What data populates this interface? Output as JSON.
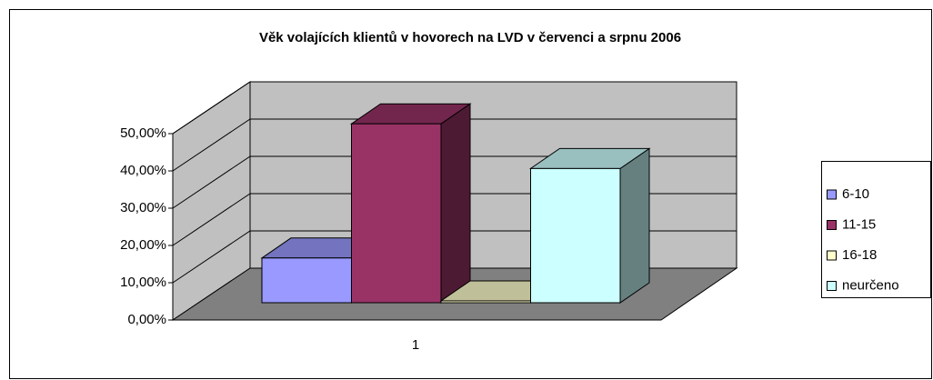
{
  "chart_data": {
    "type": "bar3d",
    "title": "Věk volajících klientů v hovorech na LVD v červenci a srpnu 2006",
    "categories": [
      "1"
    ],
    "series": [
      {
        "name": "6-10",
        "color": "#9999ff",
        "values": [
          12
        ]
      },
      {
        "name": "11-15",
        "color": "#993366",
        "values": [
          48
        ]
      },
      {
        "name": "16-18",
        "color": "#ffffcc",
        "values": [
          0.5
        ]
      },
      {
        "name": "neurčeno",
        "color": "#ccffff",
        "values": [
          36
        ]
      }
    ],
    "ylim": [
      0,
      50
    ],
    "yticks": [
      {
        "value": 0,
        "label": "0,00%"
      },
      {
        "value": 10,
        "label": "10,00%"
      },
      {
        "value": 20,
        "label": "20,00%"
      },
      {
        "value": 30,
        "label": "30,00%"
      },
      {
        "value": 40,
        "label": "40,00%"
      },
      {
        "value": 50,
        "label": "50,00%"
      }
    ],
    "grid": true,
    "legend": "right"
  }
}
